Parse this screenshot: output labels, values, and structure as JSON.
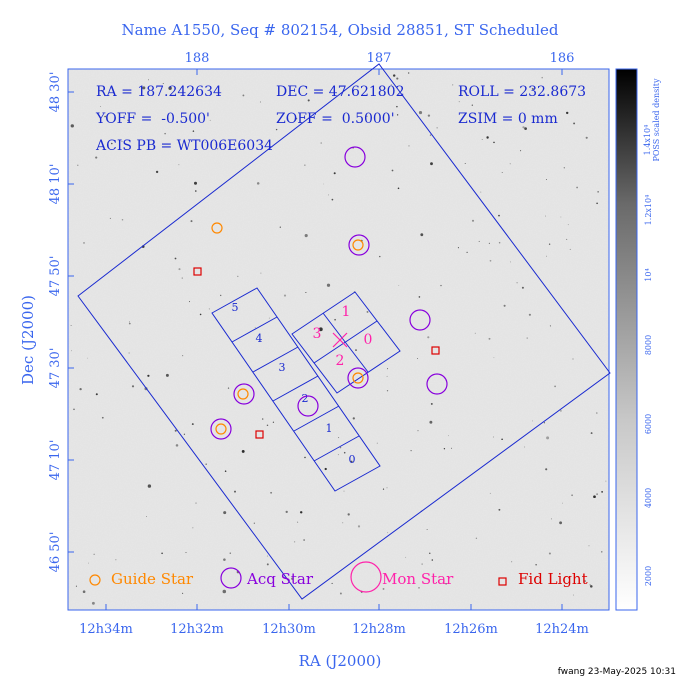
{
  "title": "Name A1550, Seq # 802154, Obsid 28851, ST Scheduled",
  "info": {
    "ra": "RA = 187.242634",
    "dec": "DEC = 47.621802",
    "roll": "ROLL = 232.8673",
    "yoff": "YOFF =  -0.500'",
    "zoff": "ZOFF =  0.5000'",
    "zsim": "ZSIM = 0 mm",
    "acis": "ACIS PB = WT006E6034"
  },
  "top_axis_ticks": [
    "188",
    "187",
    "186"
  ],
  "bottom_axis_ticks": [
    "12h34m",
    "12h32m",
    "12h30m",
    "12h28m",
    "12h26m",
    "12h24m"
  ],
  "left_axis_ticks": [
    "48 30'",
    "48 10'",
    "47 50'",
    "47 30'",
    "47 10'",
    "46 50'"
  ],
  "xlabel": "RA (J2000)",
  "ylabel": "Dec (J2000)",
  "colorbar": {
    "title_line1": "1.4x10⁴",
    "title_line2": "POSS scaled density",
    "ticks": [
      "1.2x10⁴",
      "10⁴",
      "8000",
      "6000",
      "4000",
      "2000"
    ]
  },
  "chip_labels": {
    "aci_i": [
      "1",
      "3",
      "0",
      "2"
    ],
    "aci_s": [
      "5",
      "4",
      "3",
      "2",
      "1",
      "0"
    ]
  },
  "legend": {
    "guide": "Guide Star",
    "acq": "Acq Star",
    "mon": "Mon Star",
    "fid": "Fid Light"
  },
  "colors": {
    "guide": "#ff8800",
    "acq": "#8800dd",
    "mon": "#ff22aa",
    "fid": "#dd0000",
    "overlay": "#1a2ad0",
    "axis": "#3a66ee"
  },
  "credit": "fwang 23-May-2025 10:31"
}
